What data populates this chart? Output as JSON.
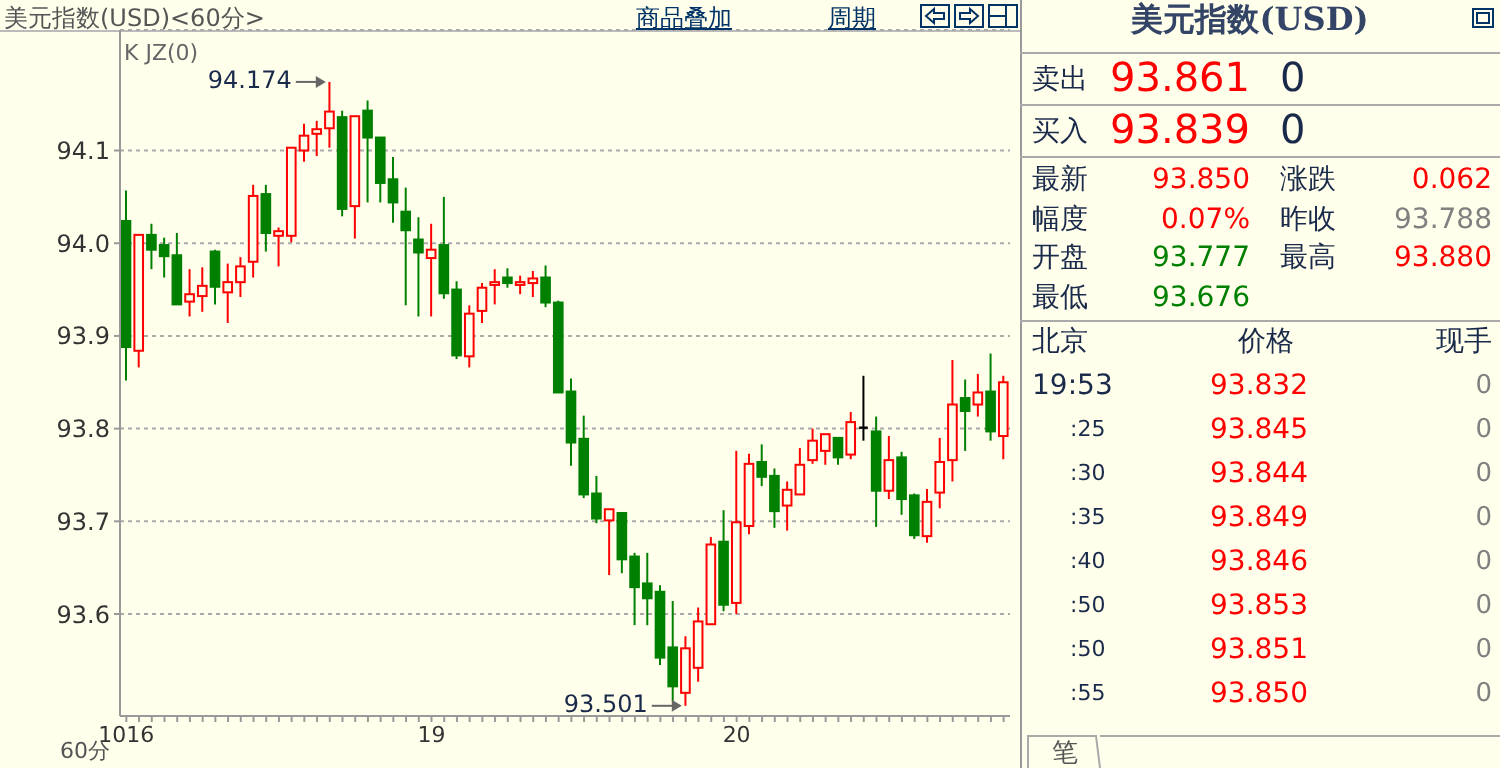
{
  "chart_data": [
    {
      "type": "candlestick",
      "title": "美元指数(USD)<60分>",
      "annotations": [
        "K JZ(0)",
        "60分",
        "商品叠加",
        "周期",
        "94.174",
        "93.501"
      ],
      "categories": [
        "1016",
        null,
        null,
        null,
        null,
        null,
        null,
        null,
        null,
        null,
        null,
        null,
        null,
        null,
        null,
        null,
        null,
        null,
        null,
        null,
        null,
        null,
        null,
        null,
        "19",
        null,
        null,
        null,
        null,
        null,
        null,
        null,
        null,
        null,
        null,
        null,
        null,
        null,
        null,
        null,
        null,
        null,
        null,
        null,
        null,
        null,
        null,
        null,
        "20",
        null,
        null,
        null,
        null,
        null,
        null,
        null,
        null,
        null,
        null,
        null,
        null,
        null,
        null,
        null,
        null,
        null,
        null,
        null,
        null,
        null
      ],
      "ohlc": [
        [
          94.024,
          94.057,
          93.852,
          93.888
        ],
        [
          93.884,
          94.009,
          93.866,
          94.009
        ],
        [
          94.009,
          94.021,
          93.972,
          93.993
        ],
        [
          93.998,
          94.006,
          93.963,
          93.986
        ],
        [
          93.987,
          94.011,
          93.934,
          93.934
        ],
        [
          93.937,
          93.972,
          93.921,
          93.945
        ],
        [
          93.943,
          93.974,
          93.926,
          93.954
        ],
        [
          93.991,
          93.993,
          93.934,
          93.953
        ],
        [
          93.947,
          93.978,
          93.914,
          93.958
        ],
        [
          93.958,
          93.985,
          93.942,
          93.975
        ],
        [
          93.98,
          94.063,
          93.963,
          94.051
        ],
        [
          94.053,
          94.063,
          93.991,
          94.011
        ],
        [
          94.008,
          94.017,
          93.975,
          94.013
        ],
        [
          94.008,
          94.103,
          94.001,
          94.103
        ],
        [
          94.1,
          94.129,
          94.088,
          94.116
        ],
        [
          94.118,
          94.132,
          94.094,
          94.123
        ],
        [
          94.124,
          94.174,
          94.103,
          94.142
        ],
        [
          94.136,
          94.143,
          94.029,
          94.037
        ],
        [
          94.04,
          94.137,
          94.005,
          94.137
        ],
        [
          94.143,
          94.154,
          94.044,
          94.114
        ],
        [
          94.114,
          94.114,
          94.044,
          94.065
        ],
        [
          94.069,
          94.093,
          94.022,
          94.044
        ],
        [
          94.034,
          94.06,
          93.933,
          94.014
        ],
        [
          94.004,
          94.028,
          93.921,
          93.99
        ],
        [
          93.984,
          94.021,
          93.921,
          93.993
        ],
        [
          93.998,
          94.05,
          93.94,
          93.946
        ],
        [
          93.95,
          93.959,
          93.875,
          93.879
        ],
        [
          93.878,
          93.933,
          93.866,
          93.924
        ],
        [
          93.927,
          93.957,
          93.914,
          93.952
        ],
        [
          93.955,
          93.972,
          93.934,
          93.958
        ],
        [
          93.963,
          93.973,
          93.952,
          93.957
        ],
        [
          93.955,
          93.965,
          93.945,
          93.958
        ],
        [
          93.957,
          93.97,
          93.942,
          93.962
        ],
        [
          93.963,
          93.976,
          93.931,
          93.936
        ],
        [
          93.936,
          93.938,
          93.839,
          93.839
        ],
        [
          93.84,
          93.854,
          93.76,
          93.785
        ],
        [
          93.789,
          93.814,
          93.725,
          93.729
        ],
        [
          93.73,
          93.749,
          93.698,
          93.703
        ],
        [
          93.701,
          93.713,
          93.642,
          93.713
        ],
        [
          93.709,
          93.709,
          93.644,
          93.659
        ],
        [
          93.662,
          93.666,
          93.588,
          93.629
        ],
        [
          93.633,
          93.666,
          93.588,
          93.617
        ],
        [
          93.624,
          93.631,
          93.545,
          93.553
        ],
        [
          93.564,
          93.614,
          93.506,
          93.522
        ],
        [
          93.515,
          93.576,
          93.501,
          93.563
        ],
        [
          93.542,
          93.607,
          93.527,
          93.592
        ],
        [
          93.589,
          93.683,
          93.589,
          93.675
        ],
        [
          93.678,
          93.712,
          93.603,
          93.61
        ],
        [
          93.612,
          93.776,
          93.6,
          93.699
        ],
        [
          93.695,
          93.773,
          93.686,
          93.762
        ],
        [
          93.764,
          93.783,
          93.738,
          93.748
        ],
        [
          93.749,
          93.757,
          93.693,
          93.711
        ],
        [
          93.717,
          93.743,
          93.69,
          93.734
        ],
        [
          93.729,
          93.779,
          93.729,
          93.761
        ],
        [
          93.766,
          93.8,
          93.762,
          93.787
        ],
        [
          93.776,
          93.794,
          93.761,
          93.794
        ],
        [
          93.79,
          93.79,
          93.761,
          93.769
        ],
        [
          93.772,
          93.818,
          93.767,
          93.807
        ],
        [
          93.801,
          93.857,
          93.787,
          93.801
        ],
        [
          93.797,
          93.813,
          93.694,
          93.733
        ],
        [
          93.733,
          93.792,
          93.724,
          93.766
        ],
        [
          93.769,
          93.775,
          93.707,
          93.724
        ],
        [
          93.728,
          93.73,
          93.681,
          93.685
        ],
        [
          93.684,
          93.735,
          93.677,
          93.721
        ],
        [
          93.731,
          93.79,
          93.714,
          93.764
        ],
        [
          93.766,
          93.874,
          93.743,
          93.826
        ],
        [
          93.833,
          93.853,
          93.776,
          93.819
        ],
        [
          93.826,
          93.859,
          93.813,
          93.839
        ],
        [
          93.84,
          93.881,
          93.787,
          93.797
        ],
        [
          93.792,
          93.857,
          93.767,
          93.85
        ]
      ],
      "colors": [
        "#008000",
        "#ff0000",
        "#008000",
        "#008000",
        "#008000",
        "#ff0000",
        "#ff0000",
        "#008000",
        "#ff0000",
        "#ff0000",
        "#ff0000",
        "#008000",
        "#ff0000",
        "#ff0000",
        "#ff0000",
        "#ff0000",
        "#ff0000",
        "#008000",
        "#ff0000",
        "#008000",
        "#008000",
        "#008000",
        "#008000",
        "#008000",
        "#ff0000",
        "#008000",
        "#008000",
        "#ff0000",
        "#ff0000",
        "#ff0000",
        "#008000",
        "#ff0000",
        "#ff0000",
        "#008000",
        "#008000",
        "#008000",
        "#008000",
        "#008000",
        "#ff0000",
        "#008000",
        "#008000",
        "#008000",
        "#008000",
        "#008000",
        "#ff0000",
        "#ff0000",
        "#ff0000",
        "#008000",
        "#ff0000",
        "#ff0000",
        "#008000",
        "#008000",
        "#ff0000",
        "#ff0000",
        "#ff0000",
        "#ff0000",
        "#008000",
        "#ff0000",
        "#000000",
        "#008000",
        "#ff0000",
        "#008000",
        "#008000",
        "#ff0000",
        "#ff0000",
        "#ff0000",
        "#008000",
        "#ff0000",
        "#008000",
        "#ff0000"
      ],
      "ylim": [
        93.49,
        94.23
      ],
      "yticks": [
        93.6,
        93.7,
        93.8,
        93.9,
        {
          "value": 94,
          "label": "94.0"
        },
        94.1
      ],
      "grid": "y"
    },
    {
      "type": "other",
      "title": "美元指数(USD)",
      "annotations": [
        "卖出",
        "93.861",
        "0",
        "买入",
        "93.839",
        "0",
        "最新",
        "93.850",
        "涨跌",
        "0.062",
        "幅度",
        "0.07%",
        "昨收",
        "93.788",
        "开盘",
        "93.777",
        "最高",
        "93.880",
        "最低",
        "93.676",
        "北京",
        "价格",
        "现手",
        "19:53",
        "93.832",
        "0",
        ":25",
        "93.845",
        "0",
        ":30",
        "93.844",
        "0",
        ":35",
        "93.849",
        "0",
        ":40",
        "93.846",
        "0",
        ":50",
        "93.853",
        "0",
        ":50",
        "93.851",
        "0",
        ":55",
        "93.850",
        "0",
        "笔"
      ]
    }
  ]
}
